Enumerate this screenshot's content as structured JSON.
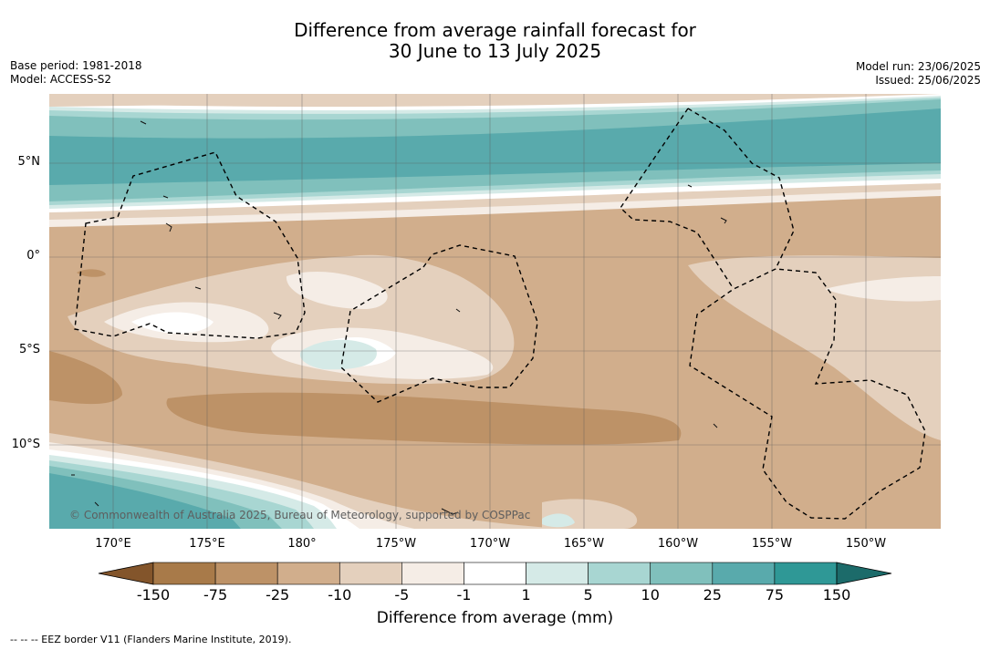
{
  "title_line1": "Difference from average rainfall forecast for",
  "title_line2": "30 June to 13 July 2025",
  "base_period": "Base period: 1981-2018",
  "model": "Model: ACCESS-S2",
  "model_run": "Model run: 23/06/2025",
  "issued": "Issued: 25/06/2025",
  "lat_labels": [
    "5°N",
    "0°",
    "5°S",
    "10°S"
  ],
  "lon_labels": [
    "170°E",
    "175°E",
    "180°",
    "175°W",
    "170°W",
    "165°W",
    "160°W",
    "155°W",
    "150°W"
  ],
  "colorbar": {
    "ticks": [
      "-150",
      "-75",
      "-25",
      "-10",
      "-5",
      "-1",
      "1",
      "5",
      "10",
      "25",
      "75",
      "150"
    ],
    "colors": [
      "#a87a49",
      "#bd9267",
      "#d1ae8c",
      "#e4d0bd",
      "#f5ede6",
      "#ffffff",
      "#d5eae7",
      "#a8d6d2",
      "#80c0bc",
      "#59aaac",
      "#2f9896"
    ],
    "extend_low": "#83552b",
    "extend_high": "#1c6b6a",
    "label": "Difference from average (mm)"
  },
  "copyright": "© Commonwealth of Australia 2025, Bureau of Meteorology, supported by COSPPac",
  "footer": "--  --  -- EEZ border V11 (Flanders Marine Institute, 2019)."
}
